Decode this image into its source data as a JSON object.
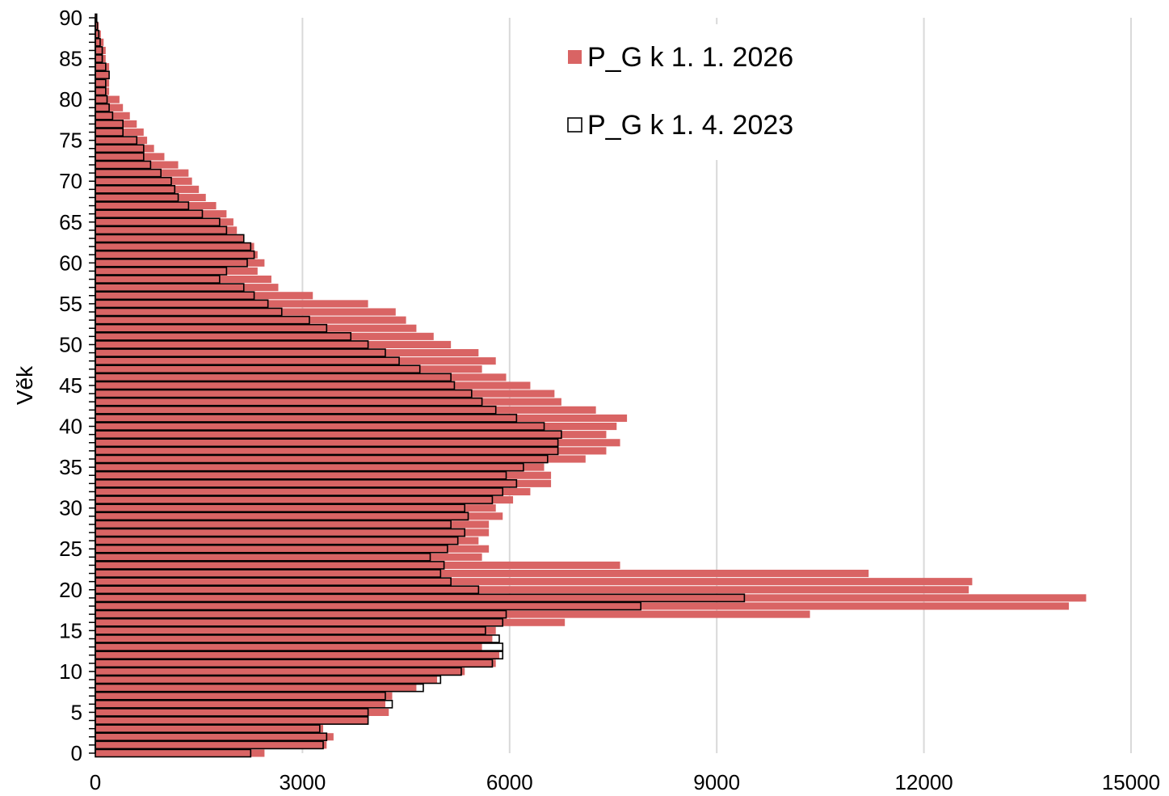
{
  "chart_data": {
    "type": "bar",
    "orientation": "horizontal",
    "xlabel": "",
    "ylabel": "Věk",
    "xlim": [
      0,
      15000
    ],
    "ylim": [
      0,
      90
    ],
    "x_ticks": [
      "0",
      "3000",
      "6000",
      "9000",
      "12000",
      "15000"
    ],
    "y_ticks": [
      "0",
      "5",
      "10",
      "15",
      "20",
      "25",
      "30",
      "35",
      "40",
      "45",
      "50",
      "55",
      "60",
      "65",
      "70",
      "75",
      "80",
      "85",
      "90"
    ],
    "grid": "vertical",
    "legend_position": "top-right",
    "colors": {
      "filled": "#d96464",
      "outline": "#000000",
      "grid": "#d9d9d9"
    },
    "ages": [
      0,
      1,
      2,
      3,
      4,
      5,
      6,
      7,
      8,
      9,
      10,
      11,
      12,
      13,
      14,
      15,
      16,
      17,
      18,
      19,
      20,
      21,
      22,
      23,
      24,
      25,
      26,
      27,
      28,
      29,
      30,
      31,
      32,
      33,
      34,
      35,
      36,
      37,
      38,
      39,
      40,
      41,
      42,
      43,
      44,
      45,
      46,
      47,
      48,
      49,
      50,
      51,
      52,
      53,
      54,
      55,
      56,
      57,
      58,
      59,
      60,
      61,
      62,
      63,
      64,
      65,
      66,
      67,
      68,
      69,
      70,
      71,
      72,
      73,
      74,
      75,
      76,
      77,
      78,
      79,
      80,
      81,
      82,
      83,
      84,
      85,
      86,
      87,
      88,
      89,
      90
    ],
    "series": [
      {
        "name": "P_G k 1. 1. 2026",
        "style": "filled",
        "values": [
          2450,
          3350,
          3450,
          3300,
          3950,
          4250,
          4200,
          4300,
          4650,
          4950,
          5350,
          5800,
          5850,
          5600,
          5750,
          5800,
          6800,
          10350,
          14100,
          14350,
          12650,
          12700,
          11200,
          7600,
          5600,
          5700,
          5550,
          5700,
          5700,
          5900,
          5800,
          6050,
          6300,
          6600,
          6600,
          6500,
          7100,
          7400,
          7600,
          7400,
          7550,
          7700,
          7250,
          6750,
          6650,
          6300,
          5950,
          5600,
          5800,
          5550,
          5150,
          4900,
          4650,
          4500,
          4350,
          3950,
          3150,
          2650,
          2550,
          2350,
          2450,
          2350,
          2300,
          2150,
          2050,
          2000,
          1900,
          1750,
          1600,
          1500,
          1400,
          1350,
          1200,
          1000,
          850,
          750,
          700,
          600,
          500,
          400,
          350,
          200,
          200,
          200,
          200,
          150,
          150,
          120,
          80,
          50,
          20
        ]
      },
      {
        "name": "P_G k 1. 4. 2023",
        "style": "outline",
        "values": [
          2250,
          3300,
          3350,
          3250,
          3950,
          3950,
          4300,
          4200,
          4750,
          5000,
          5300,
          5750,
          5900,
          5900,
          5850,
          5650,
          5900,
          5950,
          7900,
          9400,
          5550,
          5150,
          5000,
          5050,
          4850,
          5100,
          5250,
          5350,
          5150,
          5400,
          5350,
          5750,
          5900,
          6100,
          5950,
          6200,
          6550,
          6700,
          6700,
          6750,
          6500,
          6100,
          5800,
          5600,
          5450,
          5200,
          5150,
          4700,
          4400,
          4200,
          3950,
          3700,
          3350,
          3100,
          2700,
          2500,
          2300,
          2150,
          1800,
          1900,
          2200,
          2300,
          2250,
          2150,
          1900,
          1800,
          1550,
          1350,
          1200,
          1150,
          1100,
          950,
          800,
          700,
          700,
          600,
          400,
          400,
          250,
          200,
          170,
          150,
          150,
          200,
          150,
          100,
          100,
          70,
          50,
          30,
          20
        ]
      }
    ]
  }
}
